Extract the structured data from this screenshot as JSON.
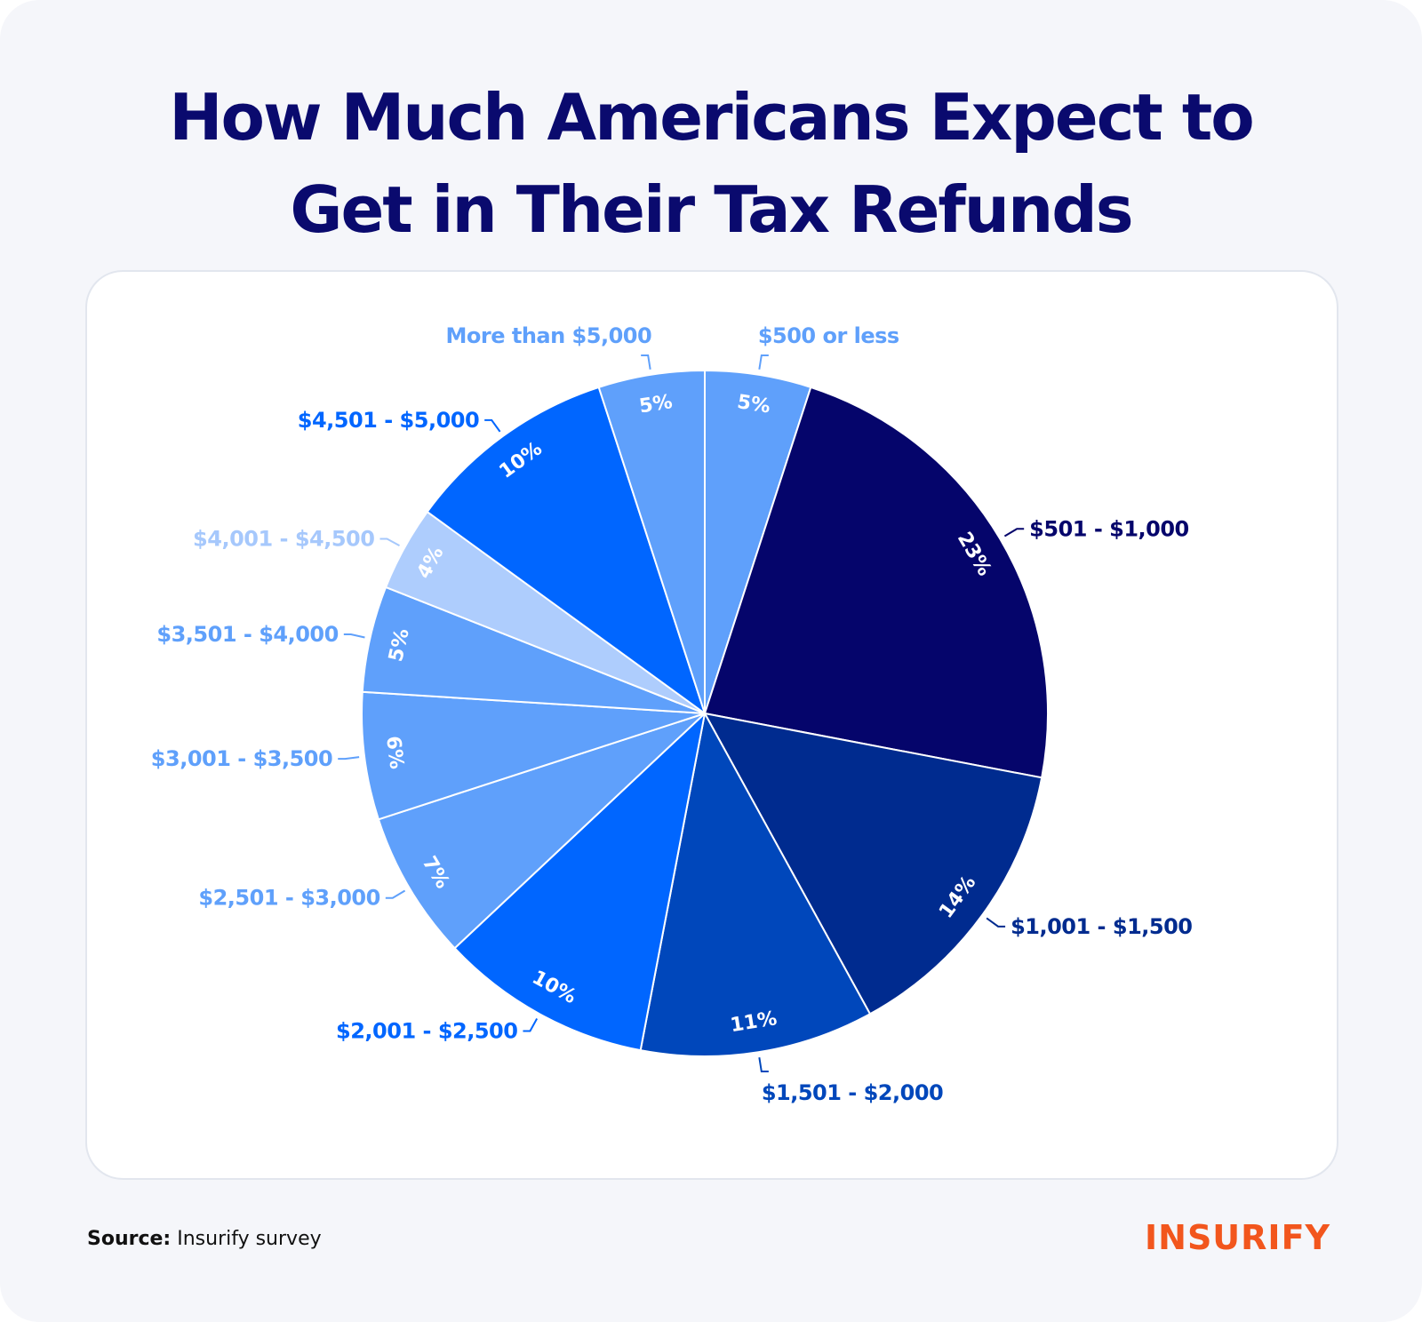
{
  "title_lines": [
    "How Much Americans Expect to",
    "Get in Their Tax Refunds"
  ],
  "source": {
    "label": "Source:",
    "text": "Insurify survey"
  },
  "brand": "INSURIFY",
  "colors": {
    "title": "#0a0a6e",
    "brand": "#f2561d",
    "background": "#f5f6fa",
    "card": "#ffffff"
  },
  "chart_data": {
    "type": "pie",
    "title": "How Much Americans Expect to Get in Their Tax Refunds",
    "categories": [
      "$500 or less",
      "$501 - $1,000",
      "$1,001 - $1,500",
      "$1,501 - $2,000",
      "$2,001 - $2,500",
      "$2,501 - $3,000",
      "$3,001 - $3,500",
      "$3,501 - $4,000",
      "$4,001 - $4,500",
      "$4,501 - $5,000",
      "More than $5,000"
    ],
    "values": [
      5,
      23,
      14,
      11,
      10,
      7,
      6,
      5,
      4,
      10,
      5
    ],
    "data_labels": [
      "5%",
      "23%",
      "14%",
      "11%",
      "10%",
      "7%",
      "6%",
      "5%",
      "4%",
      "10%",
      "5%"
    ],
    "colors": [
      "#5fa0fb",
      "#05056b",
      "#002b8f",
      "#0047bb",
      "#0066ff",
      "#5fa0fb",
      "#5fa0fb",
      "#5fa0fb",
      "#aecdfd",
      "#0066ff",
      "#5fa0fb"
    ],
    "start": "12 o'clock, clockwise",
    "legend": "none"
  }
}
